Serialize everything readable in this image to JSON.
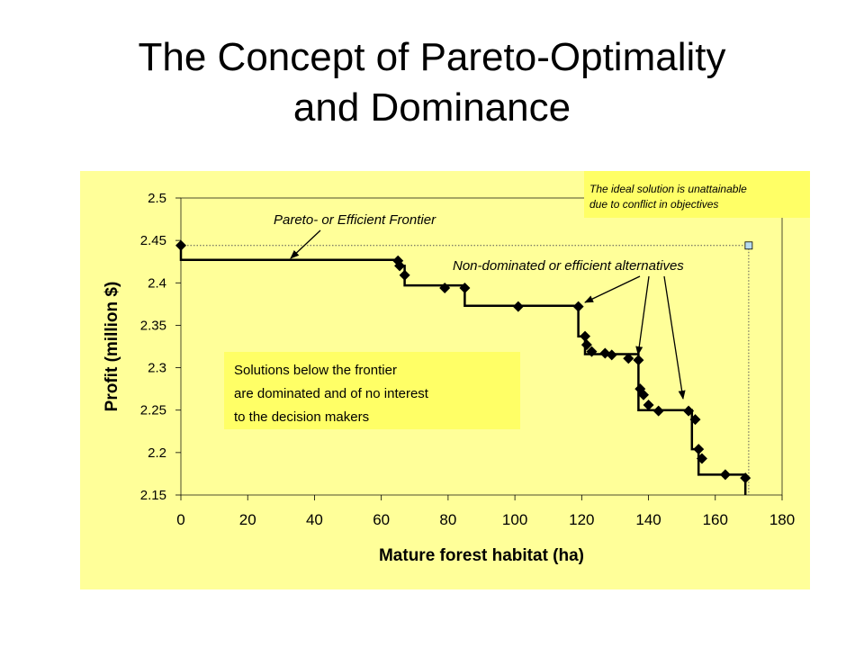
{
  "slide": {
    "title_line1": "The Concept of Pareto-Optimality",
    "title_line2": "and Dominance"
  },
  "chart_data": {
    "type": "scatter",
    "xlabel": "Mature forest habitat (ha)",
    "ylabel": "Profit (million $)",
    "xlim": [
      0,
      180
    ],
    "ylim": [
      2.15,
      2.5
    ],
    "xticks": [
      0,
      20,
      40,
      60,
      80,
      100,
      120,
      140,
      160,
      180
    ],
    "yticks": [
      2.15,
      2.2,
      2.25,
      2.3,
      2.35,
      2.4,
      2.45,
      2.5
    ],
    "grid": false,
    "colors": {
      "plot_bg": "#FFFF99",
      "callout_bg": "#FFFF66",
      "marker": "#000000",
      "ideal_marker": "#B8DCF0"
    },
    "series": [
      {
        "points": [
          [
            0,
            2.444
          ],
          [
            65,
            2.426
          ],
          [
            65.5,
            2.42
          ],
          [
            67,
            2.409
          ],
          [
            79,
            2.394
          ],
          [
            85,
            2.394
          ],
          [
            101,
            2.372
          ],
          [
            119,
            2.372
          ],
          [
            121,
            2.337
          ],
          [
            121.5,
            2.327
          ],
          [
            123,
            2.319
          ],
          [
            127,
            2.317
          ],
          [
            129,
            2.315
          ],
          [
            134,
            2.311
          ],
          [
            137,
            2.309
          ],
          [
            137.5,
            2.275
          ],
          [
            138.5,
            2.268
          ],
          [
            140,
            2.256
          ],
          [
            143,
            2.249
          ],
          [
            152,
            2.249
          ],
          [
            154,
            2.239
          ],
          [
            155,
            2.204
          ],
          [
            156,
            2.193
          ],
          [
            163,
            2.174
          ],
          [
            169,
            2.17
          ]
        ]
      }
    ],
    "frontier_steps": [
      [
        0,
        2.444
      ],
      [
        0,
        2.427
      ],
      [
        65,
        2.427
      ],
      [
        65,
        2.42
      ],
      [
        67,
        2.42
      ],
      [
        67,
        2.397
      ],
      [
        85,
        2.397
      ],
      [
        85,
        2.373
      ],
      [
        119,
        2.373
      ],
      [
        119,
        2.337
      ],
      [
        121,
        2.337
      ],
      [
        121,
        2.316
      ],
      [
        137,
        2.316
      ],
      [
        137,
        2.25
      ],
      [
        153,
        2.25
      ],
      [
        153,
        2.204
      ],
      [
        155,
        2.204
      ],
      [
        155,
        2.174
      ],
      [
        169,
        2.174
      ],
      [
        169,
        2.15
      ]
    ],
    "ideal_point": [
      170,
      2.444
    ],
    "annotations": {
      "frontier_label": "Pareto- or Efficient Frontier",
      "nondominated_label": "Non-dominated or efficient alternatives",
      "ideal_line1": "The ideal solution is unattainable",
      "ideal_line2": "due to conflict in objectives",
      "dominated_line1": "Solutions below the frontier",
      "dominated_line2": "are dominated and of no interest",
      "dominated_line3": "to the decision makers"
    }
  }
}
